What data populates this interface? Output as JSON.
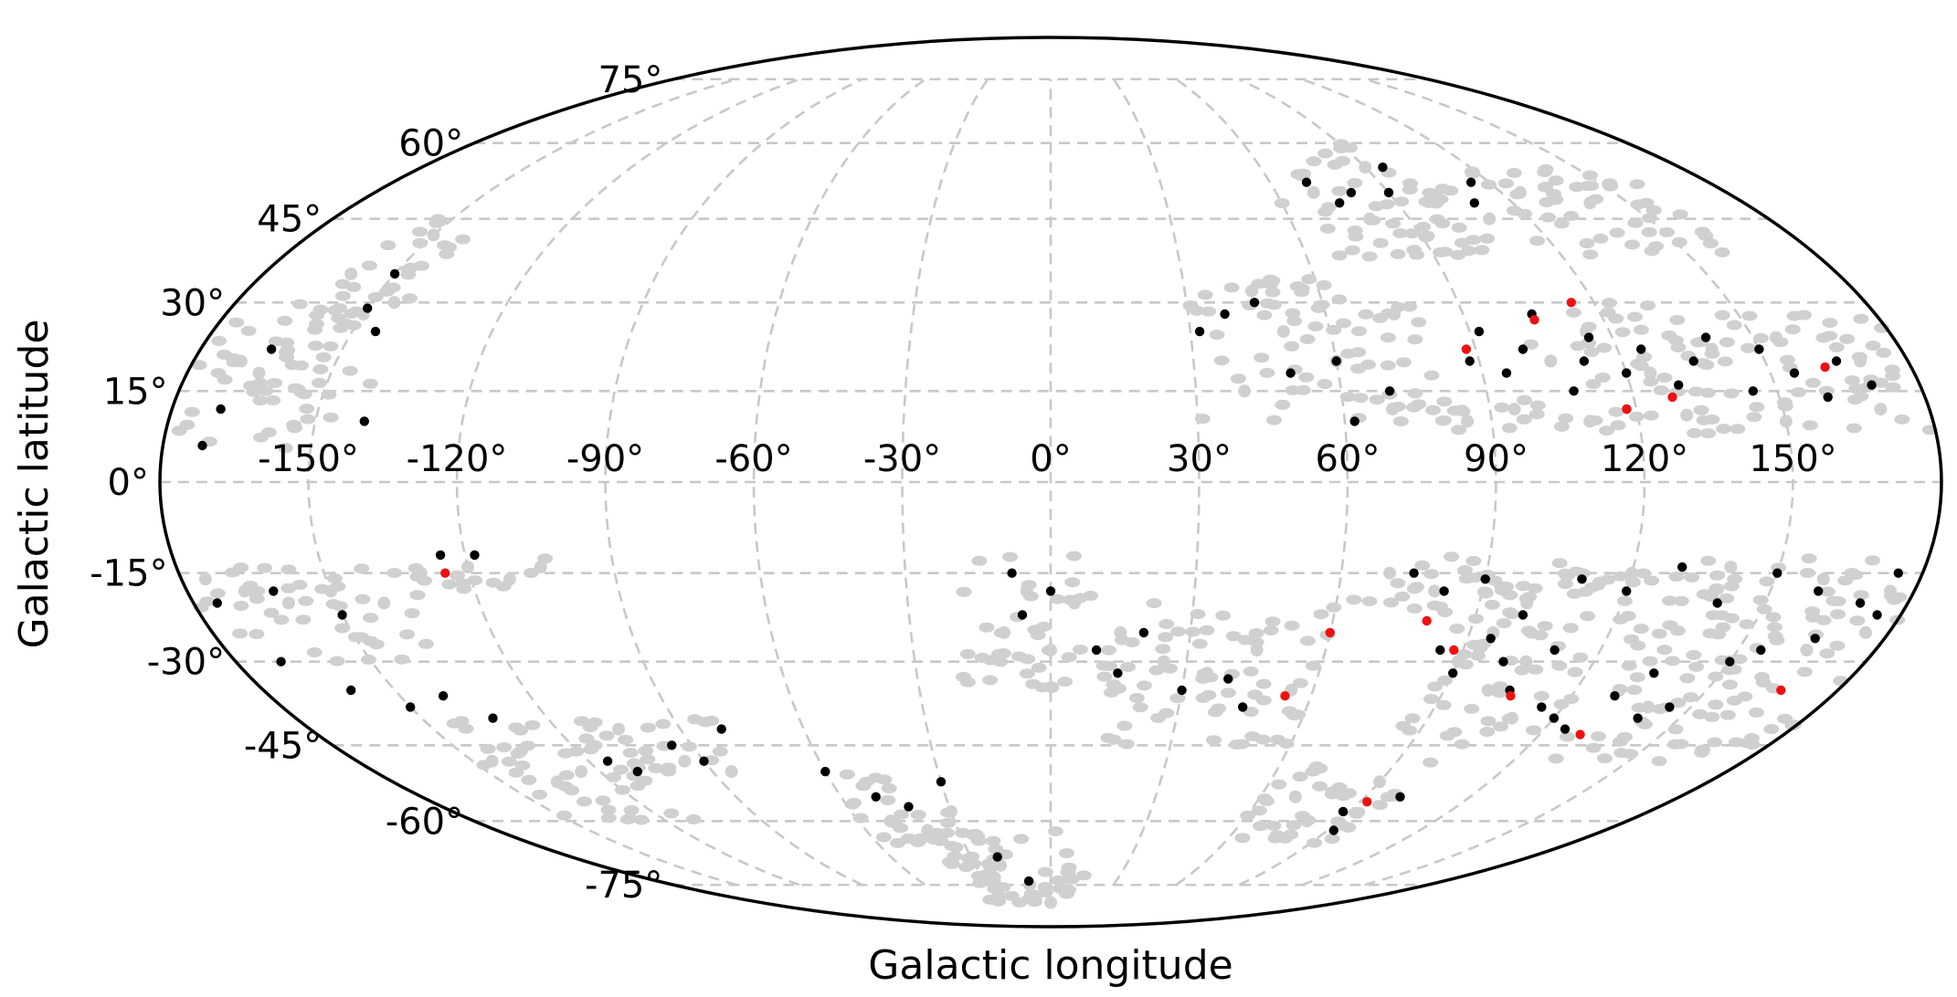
{
  "chart_data": {
    "type": "scatter",
    "projection": "mollweide",
    "coordinate_system": "galactic",
    "title": "",
    "xlabel": "Galactic longitude",
    "ylabel": "Galactic latitude",
    "xlim": [
      -180,
      180
    ],
    "ylim": [
      -90,
      90
    ],
    "grid": true,
    "x_ticks": [
      -150,
      -120,
      -90,
      -60,
      -30,
      0,
      30,
      60,
      90,
      120,
      150
    ],
    "x_tick_labels": [
      "-150°",
      "-120°",
      "-90°",
      "-60°",
      "-30°",
      "0°",
      "30°",
      "60°",
      "90°",
      "120°",
      "150°"
    ],
    "y_ticks": [
      -75,
      -60,
      -45,
      -30,
      -15,
      0,
      15,
      30,
      45,
      60,
      75
    ],
    "y_tick_labels": [
      "-75°",
      "-60°",
      "-45°",
      "-30°",
      "-15°",
      "0°",
      "15°",
      "30°",
      "45°",
      "60°",
      "75°"
    ],
    "colors": {
      "background": "#d0d0d0",
      "black": "#000000",
      "red": "#ee1111",
      "grid": "#c8c8c8"
    },
    "series": [
      {
        "marker_color": "#d0d0d0",
        "regions": [
          {
            "lon": [
              30,
              80
            ],
            "lat": [
              10,
              35
            ]
          },
          {
            "lon": [
              70,
              180
            ],
            "lat": [
              8,
              14
            ]
          },
          {
            "lon": [
              100,
              180
            ],
            "lat": [
              14,
              30
            ]
          },
          {
            "lon": [
              60,
              100
            ],
            "lat": [
              38,
              60
            ]
          },
          {
            "lon": [
              100,
              160
            ],
            "lat": [
              38,
              55
            ]
          },
          {
            "lon": [
              -180,
              -150
            ],
            "lat": [
              5,
              30
            ]
          },
          {
            "lon": [
              -160,
              -140
            ],
            "lat": [
              10,
              45
            ]
          },
          {
            "lon": [
              -180,
              -130
            ],
            "lat": [
              -30,
              -14
            ]
          },
          {
            "lon": [
              -130,
              -100
            ],
            "lat": [
              -18,
              -12
            ]
          },
          {
            "lon": [
              -150,
              -110
            ],
            "lat": [
              -60,
              -40
            ]
          },
          {
            "lon": [
              -110,
              -80
            ],
            "lat": [
              -50,
              -38
            ]
          },
          {
            "lon": [
              -60,
              -30
            ],
            "lat": [
              -65,
              -50
            ]
          },
          {
            "lon": [
              -20,
              10
            ],
            "lat": [
              -35,
              -12
            ]
          },
          {
            "lon": [
              10,
              60
            ],
            "lat": [
              -45,
              -20
            ]
          },
          {
            "lon": [
              60,
              180
            ],
            "lat": [
              -22,
              -12
            ]
          },
          {
            "lon": [
              85,
              120
            ],
            "lat": [
              -45,
              -15
            ]
          },
          {
            "lon": [
              120,
              180
            ],
            "lat": [
              -48,
              -22
            ]
          },
          {
            "lon": [
              60,
              100
            ],
            "lat": [
              -65,
              -48
            ]
          },
          {
            "lon": [
              -40,
              20
            ],
            "lat": [
              -80,
              -62
            ]
          }
        ],
        "points": [
          [
            -170,
            20
          ],
          [
            -165,
            18
          ],
          [
            -155,
            15
          ],
          [
            -150,
            28
          ],
          [
            -145,
            30
          ],
          [
            -160,
            35
          ],
          [
            -150,
            42
          ],
          [
            -175,
            -16
          ],
          [
            -168,
            -18
          ],
          [
            -160,
            -20
          ],
          [
            -150,
            -18
          ],
          [
            -140,
            -20
          ],
          [
            -130,
            -15
          ],
          [
            -120,
            -14
          ],
          [
            -112,
            -16
          ],
          [
            -105,
            -14
          ],
          [
            -145,
            -48
          ],
          [
            -135,
            -52
          ],
          [
            -125,
            -50
          ],
          [
            -115,
            -45
          ],
          [
            -105,
            -42
          ],
          [
            -95,
            -48
          ],
          [
            -85,
            -50
          ],
          [
            -50,
            -60
          ],
          [
            -40,
            -62
          ],
          [
            -30,
            -58
          ],
          [
            -20,
            -70
          ],
          [
            -10,
            -75
          ],
          [
            0,
            -80
          ],
          [
            -10,
            -25
          ],
          [
            -5,
            -18
          ],
          [
            0,
            -28
          ],
          [
            5,
            -20
          ],
          [
            15,
            -25
          ],
          [
            25,
            -30
          ],
          [
            35,
            -32
          ],
          [
            45,
            -28
          ],
          [
            55,
            -35
          ],
          [
            40,
            15
          ],
          [
            50,
            25
          ],
          [
            60,
            20
          ],
          [
            70,
            12
          ],
          [
            75,
            28
          ],
          [
            45,
            32
          ],
          [
            85,
            10
          ],
          [
            95,
            12
          ],
          [
            110,
            10
          ],
          [
            130,
            11
          ],
          [
            150,
            10
          ],
          [
            170,
            12
          ],
          [
            105,
            20
          ],
          [
            115,
            25
          ],
          [
            125,
            18
          ],
          [
            140,
            22
          ],
          [
            155,
            24
          ],
          [
            170,
            20
          ],
          [
            70,
            50
          ],
          [
            80,
            45
          ],
          [
            90,
            55
          ],
          [
            110,
            45
          ],
          [
            125,
            50
          ],
          [
            140,
            48
          ],
          [
            70,
            -15
          ],
          [
            80,
            -18
          ],
          [
            100,
            -20
          ],
          [
            120,
            -15
          ],
          [
            140,
            -14
          ],
          [
            160,
            -16
          ],
          [
            175,
            -18
          ],
          [
            95,
            -25
          ],
          [
            100,
            -35
          ],
          [
            110,
            -40
          ],
          [
            105,
            -30
          ],
          [
            90,
            -30
          ],
          [
            130,
            -35
          ],
          [
            140,
            -38
          ],
          [
            150,
            -30
          ],
          [
            165,
            -28
          ],
          [
            175,
            -25
          ],
          [
            70,
            -55
          ],
          [
            80,
            -60
          ],
          [
            90,
            -52
          ]
        ]
      },
      {
        "marker_color": "#000000",
        "points": [
          [
            -165,
            22
          ],
          [
            -170,
            12
          ],
          [
            -172,
            6
          ],
          [
            -150,
            35
          ],
          [
            -145,
            25
          ],
          [
            -150,
            29
          ],
          [
            -140,
            10
          ],
          [
            -175,
            -20
          ],
          [
            -162,
            -18
          ],
          [
            -150,
            -22
          ],
          [
            -170,
            -30
          ],
          [
            -160,
            -35
          ],
          [
            -150,
            -38
          ],
          [
            -140,
            -36
          ],
          [
            -133,
            -40
          ],
          [
            -125,
            -12
          ],
          [
            -118,
            -12
          ],
          [
            -115,
            -48
          ],
          [
            -110,
            -50
          ],
          [
            -95,
            -45
          ],
          [
            -90,
            -48
          ],
          [
            -80,
            -42
          ],
          [
            -60,
            -50
          ],
          [
            -50,
            -55
          ],
          [
            -42,
            -57
          ],
          [
            -30,
            -52
          ],
          [
            -20,
            -68
          ],
          [
            -10,
            -74
          ],
          [
            -8,
            -15
          ],
          [
            -6,
            -22
          ],
          [
            0,
            -18
          ],
          [
            10,
            -28
          ],
          [
            15,
            -32
          ],
          [
            20,
            -25
          ],
          [
            30,
            -35
          ],
          [
            40,
            -33
          ],
          [
            45,
            -38
          ],
          [
            32,
            25
          ],
          [
            38,
            28
          ],
          [
            45,
            30
          ],
          [
            50,
            18
          ],
          [
            60,
            20
          ],
          [
            62,
            10
          ],
          [
            70,
            15
          ],
          [
            70,
            52
          ],
          [
            75,
            48
          ],
          [
            80,
            50
          ],
          [
            95,
            55
          ],
          [
            90,
            50
          ],
          [
            110,
            48
          ],
          [
            115,
            52
          ],
          [
            88,
            20
          ],
          [
            92,
            25
          ],
          [
            95,
            18
          ],
          [
            100,
            22
          ],
          [
            105,
            28
          ],
          [
            108,
            15
          ],
          [
            112,
            20
          ],
          [
            115,
            24
          ],
          [
            118,
            12
          ],
          [
            120,
            18
          ],
          [
            125,
            22
          ],
          [
            130,
            16
          ],
          [
            135,
            20
          ],
          [
            140,
            24
          ],
          [
            145,
            15
          ],
          [
            150,
            22
          ],
          [
            155,
            18
          ],
          [
            160,
            14
          ],
          [
            165,
            20
          ],
          [
            170,
            16
          ],
          [
            75,
            -15
          ],
          [
            82,
            -18
          ],
          [
            90,
            -16
          ],
          [
            100,
            -22
          ],
          [
            110,
            -16
          ],
          [
            120,
            -18
          ],
          [
            130,
            -14
          ],
          [
            140,
            -20
          ],
          [
            150,
            -15
          ],
          [
            160,
            -18
          ],
          [
            170,
            -20
          ],
          [
            175,
            -15
          ],
          [
            85,
            -28
          ],
          [
            90,
            -32
          ],
          [
            95,
            -26
          ],
          [
            100,
            -30
          ],
          [
            105,
            -35
          ],
          [
            110,
            -28
          ],
          [
            115,
            -38
          ],
          [
            120,
            -40
          ],
          [
            125,
            -42
          ],
          [
            130,
            -36
          ],
          [
            135,
            -32
          ],
          [
            140,
            -40
          ],
          [
            145,
            -38
          ],
          [
            150,
            -30
          ],
          [
            155,
            -28
          ],
          [
            165,
            -26
          ],
          [
            175,
            -22
          ],
          [
            88,
            -58
          ],
          [
            92,
            -62
          ],
          [
            100,
            -55
          ]
        ]
      },
      {
        "marker_color": "#ee1111",
        "points": [
          [
            -125,
            -15
          ],
          [
            88,
            22
          ],
          [
            105,
            27
          ],
          [
            115,
            30
          ],
          [
            118,
            12
          ],
          [
            128,
            14
          ],
          [
            162,
            19
          ],
          [
            80,
            -23
          ],
          [
            88,
            -28
          ],
          [
            106,
            -36
          ],
          [
            54,
            -36
          ],
          [
            60,
            -25
          ],
          [
            92,
            -56
          ],
          [
            130,
            -43
          ],
          [
            167,
            -35
          ]
        ]
      }
    ]
  }
}
